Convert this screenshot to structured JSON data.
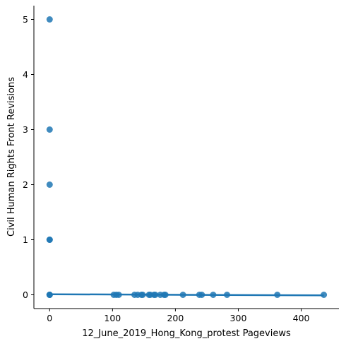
{
  "chart_data": {
    "type": "scatter",
    "title": "",
    "xlabel": "12_June_2019_Hong_Kong_protest Pageviews",
    "ylabel": "Civil Human Rights Front Revisions",
    "xlim": [
      -25,
      460
    ],
    "ylim": [
      -0.25,
      5.25
    ],
    "x_ticks": [
      0,
      100,
      200,
      300,
      400
    ],
    "y_ticks": [
      0,
      1,
      2,
      3,
      4,
      5
    ],
    "grid": false,
    "legend": "none",
    "point_color": "#1f77b4",
    "points": [
      [
        0,
        5
      ],
      [
        0,
        3
      ],
      [
        0,
        2
      ],
      [
        0,
        1
      ],
      [
        0,
        1
      ],
      [
        0,
        0
      ],
      [
        0,
        0
      ],
      [
        0,
        0
      ],
      [
        102,
        0
      ],
      [
        106,
        0
      ],
      [
        110,
        0
      ],
      [
        135,
        0
      ],
      [
        140,
        0
      ],
      [
        146,
        0
      ],
      [
        148,
        0
      ],
      [
        158,
        0
      ],
      [
        160,
        0
      ],
      [
        166,
        0
      ],
      [
        168,
        0
      ],
      [
        176,
        0
      ],
      [
        182,
        0
      ],
      [
        184,
        0
      ],
      [
        212,
        0
      ],
      [
        238,
        0
      ],
      [
        242,
        0
      ],
      [
        260,
        0
      ],
      [
        282,
        0
      ],
      [
        362,
        0
      ],
      [
        436,
        0
      ]
    ],
    "regression_line": {
      "x": [
        0,
        436
      ],
      "y": [
        0.01,
        -0.01
      ]
    }
  }
}
